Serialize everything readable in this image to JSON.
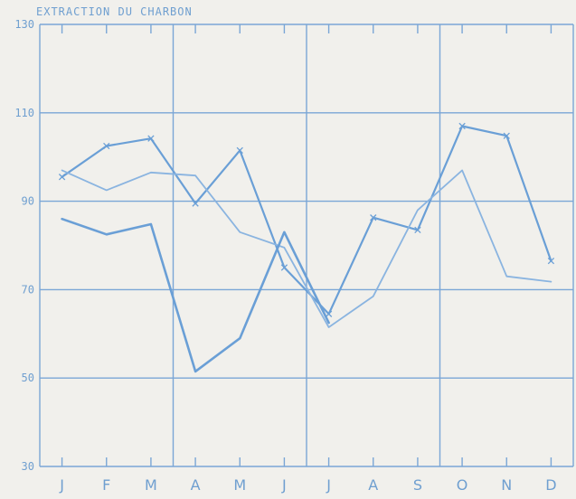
{
  "chart_data": {
    "type": "line",
    "title": "EXTRACTION DU CHARBON",
    "xlabel": "",
    "ylabel": "",
    "categories": [
      "J",
      "F",
      "M",
      "A",
      "M",
      "J",
      "J",
      "A",
      "S",
      "O",
      "N",
      "D"
    ],
    "ylim": [
      30,
      130
    ],
    "yticks": [
      30,
      50,
      70,
      90,
      110,
      130
    ],
    "grid": true,
    "legend": "none",
    "colors": {
      "axis": "#7aa6d6",
      "text": "#6f9fd0",
      "background": "#f1f0ec"
    },
    "series": [
      {
        "values": [
          95.5,
          102.5,
          104.2,
          89.5,
          101.5,
          75,
          64.5,
          86.3,
          83.5,
          107,
          104.8,
          76.5
        ],
        "marker": "x",
        "color": "#6a9fd6",
        "width": 2.2
      },
      {
        "values": [
          97,
          92.5,
          96.5,
          95.8,
          83,
          79.5,
          61.5,
          68.5,
          88,
          97,
          73,
          71.8
        ],
        "marker": "none",
        "color": "#8ab4e0",
        "width": 1.8
      },
      {
        "values": [
          86,
          82.5,
          84.8,
          51.5,
          59,
          83,
          62.5,
          null,
          null,
          null,
          null,
          null
        ],
        "marker": "none",
        "color": "#6a9fd6",
        "width": 2.6
      }
    ]
  }
}
